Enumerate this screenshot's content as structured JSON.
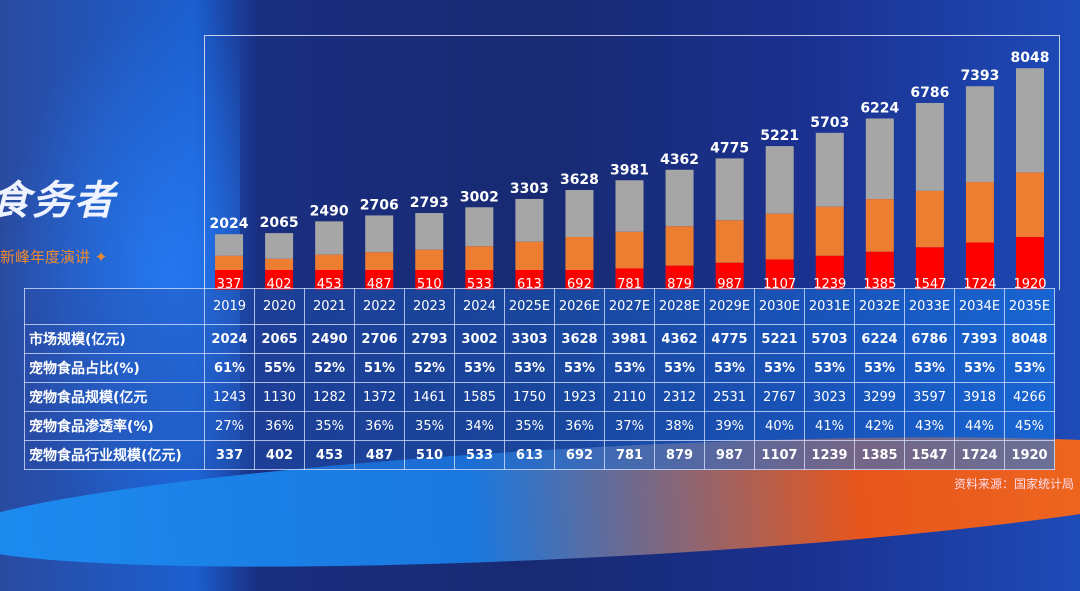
{
  "brand": {
    "title": "食务者",
    "subtitle": "新峰年度演讲 ✦"
  },
  "source": "资料来源：国家统计局",
  "colors": {
    "market": "#a6a6a6",
    "pet_food": "#ed7d31",
    "industry": "#ff0000"
  },
  "table": {
    "years": [
      "2019",
      "2020",
      "2021",
      "2022",
      "2023",
      "2024",
      "2025E",
      "2026E",
      "2027E",
      "2028E",
      "2029E",
      "2030E",
      "2031E",
      "2032E",
      "2033E",
      "2034E",
      "2035E"
    ],
    "rows": [
      {
        "label": "市场规模(亿元)",
        "bold": true,
        "values": [
          "2024",
          "2065",
          "2490",
          "2706",
          "2793",
          "3002",
          "3303",
          "3628",
          "3981",
          "4362",
          "4775",
          "5221",
          "5703",
          "6224",
          "6786",
          "7393",
          "8048"
        ]
      },
      {
        "label": "宠物食品占比(%)",
        "bold": true,
        "values": [
          "61%",
          "55%",
          "52%",
          "51%",
          "52%",
          "53%",
          "53%",
          "53%",
          "53%",
          "53%",
          "53%",
          "53%",
          "53%",
          "53%",
          "53%",
          "53%",
          "53%"
        ]
      },
      {
        "label": "宠物食品规模(亿元",
        "bold": false,
        "values": [
          "1243",
          "1130",
          "1282",
          "1372",
          "1461",
          "1585",
          "1750",
          "1923",
          "2110",
          "2312",
          "2531",
          "2767",
          "3023",
          "3299",
          "3597",
          "3918",
          "4266"
        ]
      },
      {
        "label": "宠物食品渗透率(%)",
        "bold": false,
        "values": [
          "27%",
          "36%",
          "35%",
          "36%",
          "35%",
          "34%",
          "35%",
          "36%",
          "37%",
          "38%",
          "39%",
          "40%",
          "41%",
          "42%",
          "43%",
          "44%",
          "45%"
        ]
      },
      {
        "label": "宠物食品行业规模(亿元)",
        "bold": true,
        "values": [
          "337",
          "402",
          "453",
          "487",
          "510",
          "533",
          "613",
          "692",
          "781",
          "879",
          "987",
          "1107",
          "1239",
          "1385",
          "1547",
          "1724",
          "1920"
        ]
      }
    ]
  },
  "chart_data": {
    "type": "bar",
    "stacked": true,
    "categories": [
      "2019",
      "2020",
      "2021",
      "2022",
      "2023",
      "2024",
      "2025E",
      "2026E",
      "2027E",
      "2028E",
      "2029E",
      "2030E",
      "2031E",
      "2032E",
      "2033E",
      "2034E",
      "2035E"
    ],
    "series": [
      {
        "key": "market",
        "values": [
          2024,
          2065,
          2490,
          2706,
          2793,
          3002,
          3303,
          3628,
          3981,
          4362,
          4775,
          5221,
          5703,
          6224,
          6786,
          7393,
          8048
        ]
      },
      {
        "key": "pet_food",
        "values": [
          1243,
          1130,
          1282,
          1372,
          1461,
          1585,
          1750,
          1923,
          2110,
          2312,
          2531,
          2767,
          3023,
          3299,
          3597,
          3918,
          4266
        ]
      },
      {
        "key": "industry",
        "values": [
          337,
          402,
          453,
          487,
          510,
          533,
          613,
          692,
          781,
          879,
          987,
          1107,
          1239,
          1385,
          1547,
          1724,
          1920
        ]
      }
    ]
  }
}
